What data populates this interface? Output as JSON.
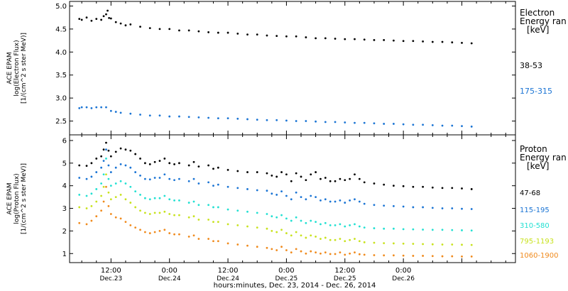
{
  "chart_data": [
    {
      "type": "scatter",
      "panel": "electron",
      "ylabel_lines": [
        "ACE EPAM",
        "log(Electron Flux)",
        "[1/(cm^2 s ster MeV)]"
      ],
      "legend_title": [
        "Electron",
        "Energy ran",
        "[keV]"
      ],
      "ylim": [
        2.2,
        5.1
      ],
      "yticks": [
        2.5,
        3.0,
        3.5,
        4.0,
        4.5,
        5.0
      ],
      "ytick_labels": [
        "2.5",
        "3.0",
        "3.5",
        "4.0",
        "4.5",
        "5.0"
      ],
      "series": [
        {
          "name": "38-53",
          "color": "#000000",
          "x": [
            5.5,
            6,
            7,
            8,
            9,
            10,
            10.5,
            11,
            11.3,
            11.6,
            12,
            13,
            14,
            15,
            16,
            18,
            20,
            22,
            24,
            26,
            28,
            30,
            32,
            34,
            36,
            38,
            40,
            42,
            44,
            46,
            48,
            50,
            52,
            54,
            56,
            58,
            60,
            62,
            64,
            66,
            68,
            70,
            72,
            74,
            76,
            78,
            80,
            82,
            84,
            86
          ],
          "y": [
            4.72,
            4.7,
            4.75,
            4.68,
            4.72,
            4.7,
            4.78,
            4.82,
            4.9,
            4.74,
            4.73,
            4.65,
            4.62,
            4.58,
            4.6,
            4.55,
            4.52,
            4.5,
            4.5,
            4.47,
            4.47,
            4.45,
            4.43,
            4.42,
            4.42,
            4.4,
            4.38,
            4.38,
            4.36,
            4.35,
            4.34,
            4.34,
            4.32,
            4.3,
            4.3,
            4.29,
            4.28,
            4.28,
            4.27,
            4.26,
            4.26,
            4.25,
            4.24,
            4.24,
            4.23,
            4.22,
            4.22,
            4.21,
            4.2,
            4.19
          ]
        },
        {
          "name": "175-315",
          "color": "#1a74d4",
          "x": [
            5.5,
            6,
            7,
            8,
            9,
            10,
            11,
            12,
            13,
            14,
            16,
            18,
            20,
            22,
            24,
            26,
            28,
            30,
            32,
            34,
            36,
            38,
            40,
            42,
            44,
            46,
            48,
            50,
            52,
            54,
            56,
            58,
            60,
            62,
            64,
            66,
            68,
            70,
            72,
            74,
            76,
            78,
            80,
            82,
            84,
            86
          ],
          "y": [
            2.78,
            2.8,
            2.8,
            2.78,
            2.8,
            2.8,
            2.8,
            2.72,
            2.7,
            2.68,
            2.66,
            2.64,
            2.62,
            2.62,
            2.6,
            2.6,
            2.59,
            2.58,
            2.57,
            2.56,
            2.56,
            2.55,
            2.54,
            2.53,
            2.52,
            2.52,
            2.51,
            2.5,
            2.5,
            2.49,
            2.48,
            2.48,
            2.47,
            2.46,
            2.46,
            2.45,
            2.44,
            2.44,
            2.43,
            2.42,
            2.42,
            2.41,
            2.4,
            2.4,
            2.39,
            2.38
          ]
        }
      ]
    },
    {
      "type": "scatter",
      "panel": "proton",
      "ylabel_lines": [
        "ACE EPAM",
        "log(Proton Flux)",
        "[1/(cm^2 s ster MeV)]"
      ],
      "legend_title": [
        "Proton",
        "Energy ran",
        "[keV]"
      ],
      "ylim": [
        0.6,
        6.25
      ],
      "yticks": [
        1,
        2,
        3,
        4,
        5,
        6
      ],
      "ytick_labels": [
        "1",
        "2",
        "3",
        "4",
        "5",
        "6"
      ],
      "xlabel": "hours:minutes, Dec. 23, 2014 - Dec. 26, 2014",
      "xlim": [
        3.5,
        95
      ],
      "xticks": [
        12,
        24,
        36,
        48,
        60,
        72
      ],
      "xtick_labels": [
        "12:00",
        "0:00",
        "12:00",
        "0:00",
        "12:00",
        "0:00"
      ],
      "xtick_sublabels": [
        "Dec.23",
        "Dec.24",
        "Dec.24",
        "Dec.25",
        "Dec.25",
        "Dec.26"
      ],
      "series": [
        {
          "name": "47-68",
          "color": "#000000",
          "x": [
            5.5,
            7,
            8,
            9,
            10,
            10.5,
            11,
            11.5,
            12,
            13,
            14,
            15,
            16,
            17,
            18,
            19,
            20,
            21,
            22,
            23,
            24,
            25,
            26,
            28,
            29,
            30,
            32,
            33,
            34,
            36,
            38,
            40,
            42,
            44,
            45,
            46,
            47,
            48,
            49,
            50,
            51,
            52,
            53,
            54,
            55,
            56,
            57,
            58,
            59,
            60,
            61,
            62,
            63,
            64,
            66,
            68,
            70,
            72,
            74,
            76,
            78,
            80,
            82,
            84,
            86
          ],
          "y": [
            4.9,
            4.88,
            5.0,
            5.2,
            5.3,
            5.6,
            5.9,
            5.55,
            5.3,
            5.5,
            5.65,
            5.6,
            5.55,
            5.4,
            5.2,
            5.0,
            4.95,
            5.05,
            5.1,
            5.2,
            5.0,
            4.95,
            5.0,
            4.9,
            5.05,
            4.85,
            4.9,
            4.75,
            4.8,
            4.7,
            4.65,
            4.6,
            4.6,
            4.55,
            4.45,
            4.4,
            4.6,
            4.5,
            4.2,
            4.55,
            4.4,
            4.25,
            4.5,
            4.6,
            4.3,
            4.35,
            4.2,
            4.2,
            4.3,
            4.25,
            4.3,
            4.5,
            4.3,
            4.15,
            4.1,
            4.05,
            4.0,
            3.98,
            3.95,
            3.95,
            3.92,
            3.9,
            3.9,
            3.88,
            3.85
          ]
        },
        {
          "name": "115-195",
          "color": "#1a74d4",
          "x": [
            5.5,
            7,
            8,
            9,
            10,
            10.5,
            11,
            11.5,
            12,
            13,
            14,
            15,
            16,
            17,
            18,
            19,
            20,
            21,
            22,
            23,
            24,
            25,
            26,
            28,
            29,
            30,
            32,
            33,
            34,
            36,
            38,
            40,
            42,
            44,
            45,
            46,
            47,
            48,
            49,
            50,
            51,
            52,
            53,
            54,
            55,
            56,
            57,
            58,
            59,
            60,
            61,
            62,
            63,
            64,
            66,
            68,
            70,
            72,
            74,
            76,
            78,
            80,
            82,
            84,
            86
          ],
          "y": [
            4.35,
            4.3,
            4.4,
            4.6,
            4.8,
            5.1,
            5.6,
            4.9,
            4.6,
            4.8,
            4.95,
            4.9,
            4.8,
            4.6,
            4.45,
            4.3,
            4.28,
            4.35,
            4.35,
            4.5,
            4.3,
            4.25,
            4.3,
            4.2,
            4.3,
            4.1,
            4.15,
            4.0,
            4.05,
            3.95,
            3.9,
            3.85,
            3.8,
            3.78,
            3.65,
            3.6,
            3.75,
            3.55,
            3.4,
            3.7,
            3.5,
            3.4,
            3.55,
            3.5,
            3.35,
            3.4,
            3.3,
            3.3,
            3.35,
            3.25,
            3.35,
            3.4,
            3.3,
            3.2,
            3.15,
            3.12,
            3.1,
            3.08,
            3.05,
            3.05,
            3.02,
            3.0,
            3.0,
            2.98,
            2.97
          ]
        },
        {
          "name": "310-580",
          "color": "#22e0d2",
          "x": [
            5.5,
            7,
            8,
            9,
            10,
            10.5,
            11,
            11.5,
            12,
            13,
            14,
            15,
            16,
            17,
            18,
            19,
            20,
            21,
            22,
            23,
            24,
            25,
            26,
            28,
            29,
            30,
            32,
            33,
            34,
            36,
            38,
            40,
            42,
            44,
            45,
            46,
            47,
            48,
            49,
            50,
            51,
            52,
            53,
            54,
            55,
            56,
            57,
            58,
            59,
            60,
            61,
            62,
            63,
            64,
            66,
            68,
            70,
            72,
            74,
            76,
            78,
            80,
            82,
            84,
            86
          ],
          "y": [
            3.6,
            3.55,
            3.65,
            3.85,
            4.1,
            4.5,
            5.2,
            4.3,
            4.0,
            4.1,
            4.2,
            4.1,
            3.95,
            3.75,
            3.6,
            3.45,
            3.4,
            3.45,
            3.45,
            3.55,
            3.4,
            3.35,
            3.35,
            3.25,
            3.3,
            3.15,
            3.15,
            3.05,
            3.05,
            2.95,
            2.9,
            2.85,
            2.8,
            2.75,
            2.65,
            2.6,
            2.7,
            2.55,
            2.45,
            2.6,
            2.45,
            2.35,
            2.45,
            2.4,
            2.3,
            2.35,
            2.25,
            2.25,
            2.3,
            2.2,
            2.25,
            2.3,
            2.2,
            2.15,
            2.12,
            2.1,
            2.1,
            2.08,
            2.07,
            2.06,
            2.05,
            2.05,
            2.04,
            2.03,
            2.02
          ]
        },
        {
          "name": "795-1193",
          "color": "#c8e21e",
          "x": [
            5.5,
            7,
            8,
            9,
            10,
            10.5,
            11,
            11.5,
            12,
            13,
            14,
            15,
            16,
            17,
            18,
            19,
            20,
            21,
            22,
            23,
            24,
            25,
            26,
            28,
            29,
            30,
            32,
            33,
            34,
            36,
            38,
            40,
            42,
            44,
            45,
            46,
            47,
            48,
            49,
            50,
            51,
            52,
            53,
            54,
            55,
            56,
            57,
            58,
            59,
            60,
            61,
            62,
            63,
            64,
            66,
            68,
            70,
            72,
            74,
            76,
            78,
            80,
            82,
            84,
            86
          ],
          "y": [
            3.05,
            3.0,
            3.1,
            3.3,
            3.55,
            3.95,
            4.5,
            3.7,
            3.4,
            3.5,
            3.6,
            3.4,
            3.25,
            3.05,
            2.9,
            2.8,
            2.75,
            2.8,
            2.8,
            2.85,
            2.75,
            2.7,
            2.7,
            2.6,
            2.65,
            2.5,
            2.5,
            2.4,
            2.4,
            2.3,
            2.25,
            2.2,
            2.15,
            2.1,
            2.0,
            1.95,
            2.05,
            1.9,
            1.8,
            1.95,
            1.8,
            1.7,
            1.8,
            1.75,
            1.65,
            1.7,
            1.6,
            1.6,
            1.65,
            1.55,
            1.6,
            1.65,
            1.55,
            1.5,
            1.48,
            1.46,
            1.45,
            1.44,
            1.43,
            1.42,
            1.41,
            1.4,
            1.4,
            1.39,
            1.38
          ]
        },
        {
          "name": "1060-1900",
          "color": "#f08a1c",
          "x": [
            5.5,
            7,
            8,
            9,
            10,
            10.5,
            11,
            11.5,
            12,
            13,
            14,
            15,
            16,
            17,
            18,
            19,
            20,
            21,
            22,
            23,
            24,
            25,
            26,
            28,
            29,
            30,
            32,
            33,
            34,
            36,
            38,
            40,
            42,
            44,
            45,
            46,
            47,
            48,
            49,
            50,
            51,
            52,
            53,
            54,
            55,
            56,
            57,
            58,
            59,
            60,
            61,
            62,
            63,
            64,
            66,
            68,
            70,
            72,
            74,
            76,
            78,
            80,
            82,
            84,
            86
          ],
          "y": [
            2.35,
            2.3,
            2.45,
            2.65,
            2.9,
            3.3,
            3.95,
            3.1,
            2.75,
            2.6,
            2.55,
            2.4,
            2.25,
            2.15,
            2.05,
            1.95,
            1.9,
            1.95,
            2.0,
            2.05,
            1.9,
            1.85,
            1.85,
            1.75,
            1.8,
            1.65,
            1.65,
            1.55,
            1.55,
            1.45,
            1.4,
            1.35,
            1.3,
            1.25,
            1.2,
            1.15,
            1.3,
            1.15,
            1.05,
            1.2,
            1.1,
            1.0,
            1.1,
            1.05,
            1.0,
            1.05,
            0.98,
            0.98,
            1.05,
            0.95,
            1.0,
            1.05,
            0.97,
            0.95,
            0.93,
            0.92,
            0.92,
            0.91,
            0.9,
            0.9,
            0.89,
            0.88,
            0.88,
            0.87,
            0.87
          ]
        }
      ]
    }
  ]
}
